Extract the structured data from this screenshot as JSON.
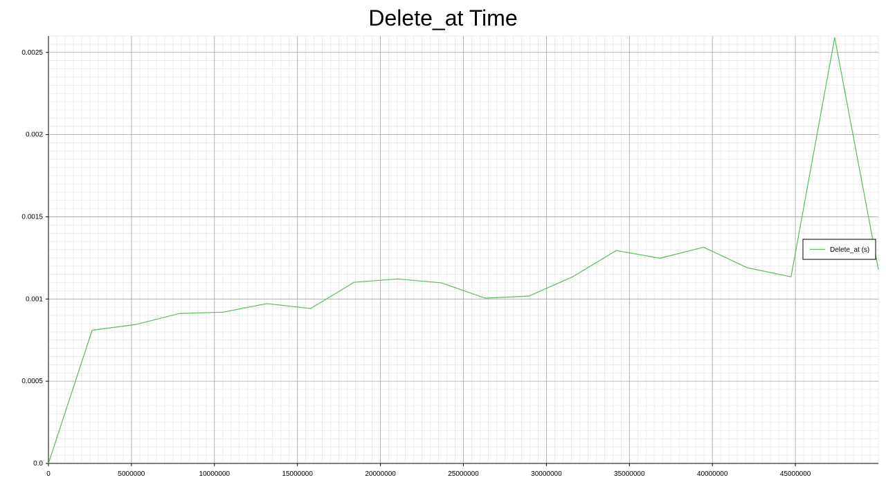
{
  "chart_data": {
    "type": "line",
    "title": "Delete_at Time",
    "xlabel": "",
    "ylabel": "",
    "xlim": [
      0,
      50000000
    ],
    "ylim": [
      0,
      0.0026
    ],
    "x_ticks": [
      {
        "value": 0,
        "label": "0"
      },
      {
        "value": 5000000,
        "label": "5000000"
      },
      {
        "value": 10000000,
        "label": "10000000"
      },
      {
        "value": 15000000,
        "label": "15000000"
      },
      {
        "value": 20000000,
        "label": "20000000"
      },
      {
        "value": 25000000,
        "label": "25000000"
      },
      {
        "value": 30000000,
        "label": "30000000"
      },
      {
        "value": 35000000,
        "label": "35000000"
      },
      {
        "value": 40000000,
        "label": "40000000"
      },
      {
        "value": 45000000,
        "label": "45000000"
      }
    ],
    "y_ticks": [
      {
        "value": 0,
        "label": "0.0"
      },
      {
        "value": 0.0005,
        "label": "0.0005"
      },
      {
        "value": 0.001,
        "label": "0.001"
      },
      {
        "value": 0.0015,
        "label": "0.0015"
      },
      {
        "value": 0.002,
        "label": "0.002"
      },
      {
        "value": 0.0025,
        "label": "0.0025"
      }
    ],
    "grid": true,
    "legend_position": "right",
    "series": [
      {
        "name": "Delete_at (s)",
        "color": "#5cb85c",
        "x": [
          0,
          2631579,
          5263158,
          7894737,
          10526316,
          13157895,
          15789474,
          18421053,
          21052632,
          23684211,
          26315789,
          28947368,
          31578947,
          34210526,
          36842105,
          39473684,
          42105263,
          44736842,
          47368421,
          50000000
        ],
        "y": [
          0.0,
          0.00081,
          0.000845,
          0.000912,
          0.00092,
          0.000972,
          0.000942,
          0.001102,
          0.001122,
          0.001098,
          0.001005,
          0.001018,
          0.001135,
          0.001295,
          0.001248,
          0.001315,
          0.00119,
          0.001135,
          0.00259,
          0.00118
        ]
      }
    ]
  }
}
